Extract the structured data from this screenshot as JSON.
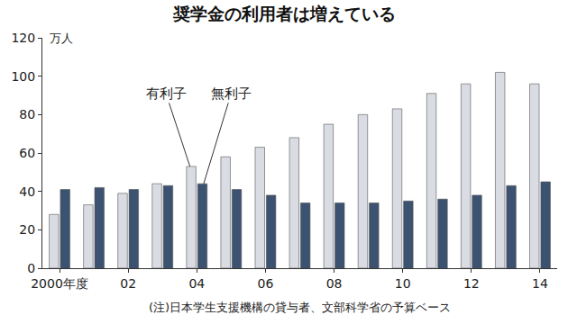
{
  "chart_data": {
    "type": "bar",
    "title": "奨学金の利用者は増えている",
    "ylabel": "万人",
    "note": "(注)日本学生支援機構の貸与者、文部科学省の予算ベース",
    "categories": [
      "2000年度",
      null,
      "02",
      null,
      "04",
      null,
      "06",
      null,
      "08",
      null,
      "10",
      null,
      "12",
      null,
      "14"
    ],
    "series": [
      {
        "name": "有利子",
        "color": "#d9dce3",
        "values": [
          28,
          33,
          39,
          44,
          53,
          58,
          63,
          68,
          75,
          80,
          83,
          91,
          96,
          102,
          96
        ]
      },
      {
        "name": "無利子",
        "color": "#3b5270",
        "values": [
          41,
          42,
          41,
          43,
          44,
          41,
          38,
          34,
          34,
          34,
          35,
          36,
          38,
          43,
          45
        ]
      }
    ],
    "ylim": [
      0,
      120
    ],
    "yticks": [
      0,
      20,
      40,
      60,
      80,
      100,
      120
    ],
    "grid": false
  }
}
